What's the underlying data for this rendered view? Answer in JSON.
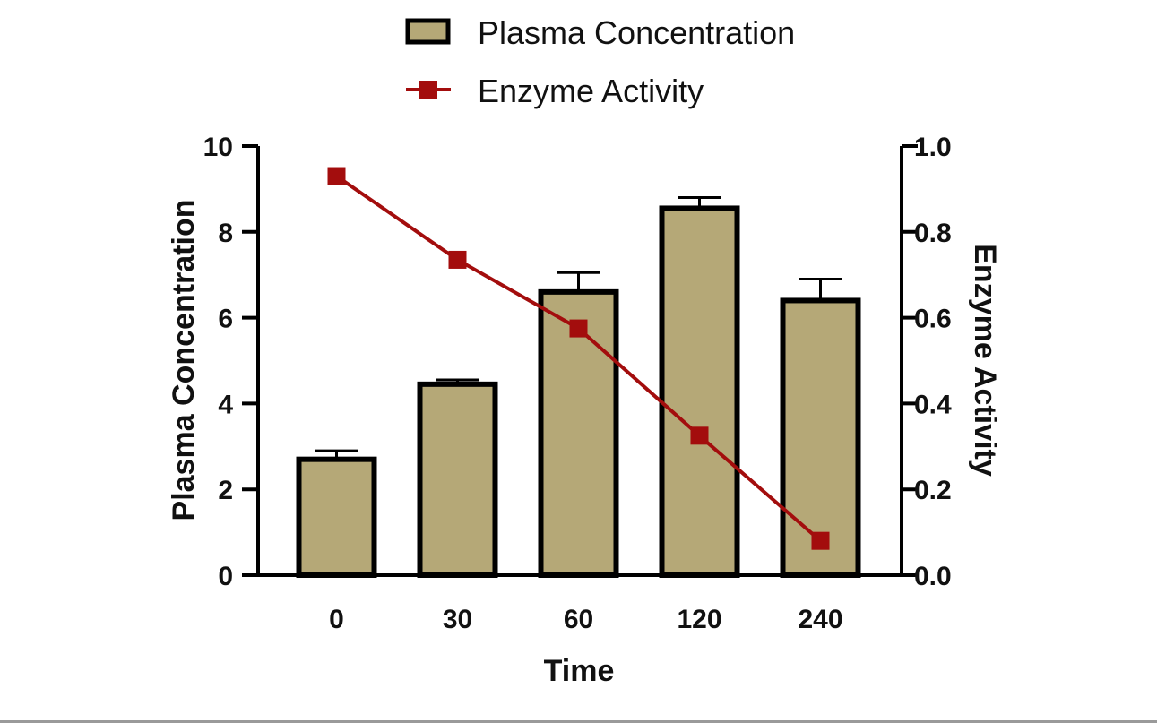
{
  "chart_data": {
    "type": "bar",
    "categories": [
      "0",
      "30",
      "60",
      "120",
      "240"
    ],
    "xlabel": "Time",
    "ylabel": "Plasma Concentration",
    "y2label": "Enzyme Activity",
    "ylim": [
      0,
      10
    ],
    "y2lim": [
      0,
      1.0
    ],
    "yticks": [
      "0",
      "2",
      "4",
      "6",
      "8",
      "10"
    ],
    "y2ticks": [
      "0.0",
      "0.2",
      "0.4",
      "0.6",
      "0.8",
      "1.0"
    ],
    "grid": false,
    "legend_position": "top-center",
    "series": [
      {
        "name": "Plasma Concentration",
        "type": "bar",
        "axis": "left",
        "values": [
          2.7,
          4.45,
          6.6,
          8.55,
          6.4
        ],
        "error": [
          0.2,
          0.1,
          0.45,
          0.25,
          0.5
        ],
        "color": "#b5a877",
        "edge_color": "#000000"
      },
      {
        "name": "Enzyme Activity",
        "type": "line",
        "axis": "right",
        "values": [
          0.93,
          0.735,
          0.575,
          0.325,
          0.08
        ],
        "color": "#a30d0d"
      }
    ]
  }
}
